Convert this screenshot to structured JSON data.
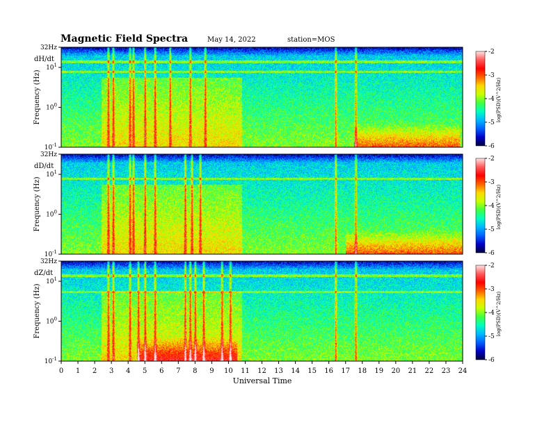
{
  "header": {
    "title": "Magnetic  Field  Spectra",
    "date": "May 14, 2022",
    "station": "station=MOS"
  },
  "colors": {
    "background": "#ffffff",
    "colormap": [
      "#00003a",
      "#0000c8",
      "#0060ff",
      "#00b8ff",
      "#00ffc0",
      "#40ff40",
      "#c8ff00",
      "#ffd800",
      "#ff6000",
      "#ff0000",
      "#ff5a5a",
      "#ffe4e4"
    ]
  },
  "chart_data": [
    {
      "type": "heatmap",
      "panel_label": "dH/dt",
      "ylabel": "Frequency  (Hz)",
      "yticks": [
        "32Hz",
        "10",
        "10",
        "10"
      ],
      "ytick_exponents": [
        "",
        "1",
        "0",
        "-1"
      ],
      "ylim_hz": [
        0.1,
        32
      ],
      "ylog": true,
      "xlim": [
        0,
        24
      ],
      "colorbar": {
        "label": "log(PSD)(V^2/Hz)",
        "ticks": [
          "-2",
          "-3",
          "-4",
          "-5",
          "-6"
        ],
        "range": [
          -6,
          -2
        ]
      },
      "features": {
        "line_hz": [
          7.8,
          14
        ],
        "bursts_ut": [
          2.8,
          3.1,
          4.1,
          4.3,
          5.0,
          5.6,
          6.5,
          7.7,
          8.6,
          16.4,
          17.6
        ],
        "lowfreq_hot_ut": [
          17.5,
          23.8
        ]
      }
    },
    {
      "type": "heatmap",
      "panel_label": "dD/dt",
      "ylabel": "Frequency  (Hz)",
      "yticks": [
        "32Hz",
        "10",
        "10",
        "10"
      ],
      "ytick_exponents": [
        "",
        "1",
        "0",
        "-1"
      ],
      "ylim_hz": [
        0.1,
        32
      ],
      "ylog": true,
      "xlim": [
        0,
        24
      ],
      "colorbar": {
        "label": "log(PSD)(V^2/Hz)",
        "ticks": [
          "-2",
          "-3",
          "-4",
          "-5",
          "-6"
        ],
        "range": [
          -6,
          -2
        ]
      },
      "features": {
        "line_hz": [
          7.8
        ],
        "bursts_ut": [
          2.8,
          3.1,
          4.1,
          4.3,
          5.0,
          5.6,
          7.4,
          7.8,
          8.3,
          16.4,
          17.6
        ],
        "lowfreq_hot_ut": [
          17.0,
          24.0
        ]
      }
    },
    {
      "type": "heatmap",
      "panel_label": "dZ/dt",
      "ylabel": "Frequency  (Hz)",
      "yticks": [
        "32Hz",
        "10",
        "10",
        "10"
      ],
      "ytick_exponents": [
        "",
        "1",
        "0",
        "-1"
      ],
      "ylim_hz": [
        0.1,
        32
      ],
      "ylog": true,
      "xlim": [
        0,
        24
      ],
      "colorbar": {
        "label": "log(PSD)(V^2/Hz)",
        "ticks": [
          "-2",
          "-3",
          "-4",
          "-5",
          "-6"
        ],
        "range": [
          -6,
          -2
        ]
      },
      "features": {
        "line_hz": [
          14,
          5.5
        ],
        "bursts_ut": [
          2.8,
          3.1,
          4.1,
          4.6,
          5.0,
          5.6,
          7.4,
          7.7,
          8.0,
          8.5,
          9.6,
          10.1,
          16.4,
          17.6
        ],
        "lowfreq_hot_ut": [
          4.5,
          10.5
        ]
      }
    }
  ],
  "xaxis": {
    "label": "Universal Time",
    "ticks": [
      "0",
      "1",
      "2",
      "3",
      "4",
      "5",
      "6",
      "7",
      "8",
      "9",
      "10",
      "11",
      "12",
      "13",
      "14",
      "15",
      "16",
      "17",
      "18",
      "19",
      "20",
      "21",
      "22",
      "23",
      "24"
    ]
  }
}
